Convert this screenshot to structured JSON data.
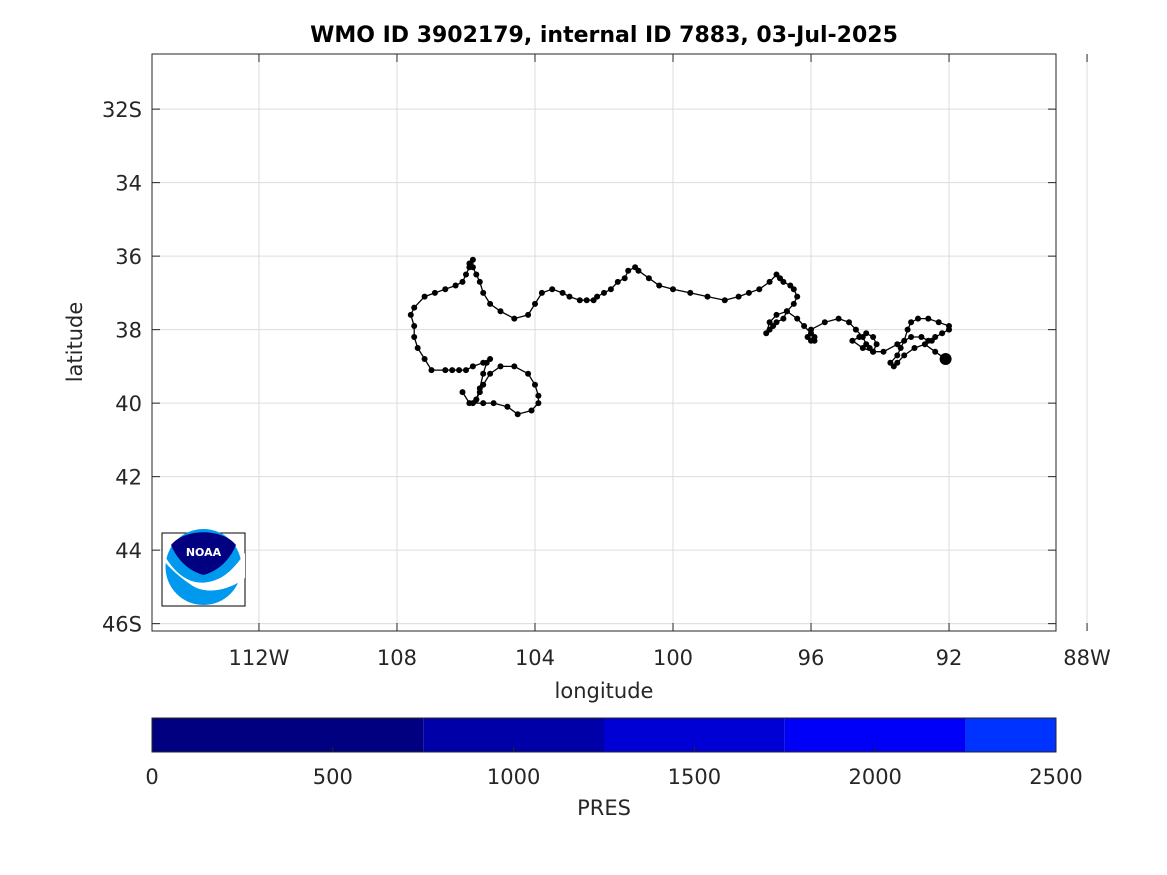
{
  "chart_data": {
    "type": "scatter",
    "title": "WMO ID 3902179, internal ID 7883, 03-Jul-2025",
    "xlabel": "longitude",
    "ylabel": "latitude",
    "xlim": [
      -115.1,
      -88.9
    ],
    "ylim": [
      -46.2,
      -30.5
    ],
    "x_ticks": [
      {
        "value": -112,
        "label": "112W"
      },
      {
        "value": -108,
        "label": "108"
      },
      {
        "value": -104,
        "label": "104"
      },
      {
        "value": -100,
        "label": "100"
      },
      {
        "value": -96,
        "label": "96"
      },
      {
        "value": -92,
        "label": "92"
      },
      {
        "value": -88,
        "label": "88W"
      }
    ],
    "y_ticks": [
      {
        "value": -32,
        "label": "32S"
      },
      {
        "value": -34,
        "label": "34"
      },
      {
        "value": -36,
        "label": "36"
      },
      {
        "value": -38,
        "label": "38"
      },
      {
        "value": -40,
        "label": "40"
      },
      {
        "value": -42,
        "label": "42"
      },
      {
        "value": -44,
        "label": "44"
      },
      {
        "value": -46,
        "label": "46S"
      }
    ],
    "grid": true,
    "series": [
      {
        "marker_color": "#000000",
        "line_color": "#000000",
        "last_point_highlighted": true,
        "lon": [
          -106.1,
          -105.9,
          -105.5,
          -105.2,
          -104.8,
          -104.5,
          -104.1,
          -103.9,
          -103.9,
          -104.0,
          -104.2,
          -104.6,
          -105.0,
          -105.3,
          -105.5,
          -105.6,
          -105.7,
          -105.8,
          -105.7,
          -105.6,
          -105.5,
          -105.4,
          -105.3,
          -105.5,
          -105.8,
          -106.0,
          -106.2,
          -106.4,
          -106.6,
          -107.0,
          -107.2,
          -107.4,
          -107.5,
          -107.5,
          -107.6,
          -107.5,
          -107.2,
          -106.9,
          -106.6,
          -106.3,
          -106.1,
          -106.0,
          -105.9,
          -105.9,
          -105.8,
          -105.8,
          -105.7,
          -105.6,
          -105.5,
          -105.3,
          -105.0,
          -104.6,
          -104.2,
          -104.0,
          -103.8,
          -103.5,
          -103.2,
          -103.0,
          -102.7,
          -102.5,
          -102.3,
          -102.2,
          -102.0,
          -101.8,
          -101.6,
          -101.4,
          -101.3,
          -101.1,
          -101.0,
          -100.7,
          -100.4,
          -100.0,
          -99.5,
          -99.0,
          -98.5,
          -98.1,
          -97.8,
          -97.5,
          -97.2,
          -97.0,
          -96.9,
          -96.8,
          -96.6,
          -96.5,
          -96.4,
          -96.5,
          -96.7,
          -96.8,
          -97.0,
          -97.1,
          -97.2,
          -97.3,
          -97.2,
          -97.0,
          -96.7,
          -96.4,
          -96.2,
          -96.0,
          -95.9,
          -95.9,
          -96.0,
          -96.1,
          -96.0,
          -95.6,
          -95.2,
          -94.9,
          -94.7,
          -94.5,
          -94.4,
          -94.3,
          -94.2,
          -94.1,
          -94.2,
          -94.4,
          -94.6,
          -94.8,
          -94.5,
          -94.2,
          -93.9,
          -93.5,
          -93.1,
          -92.8,
          -92.6,
          -92.5,
          -92.4,
          -92.2,
          -92.0,
          -92.0,
          -92.3,
          -92.6,
          -92.9,
          -93.1,
          -93.2,
          -93.3,
          -93.4,
          -93.5,
          -93.7,
          -93.6,
          -93.5,
          -93.3,
          -93.0,
          -92.7,
          -92.4,
          -92.1
        ],
        "lat": [
          -39.7,
          -40.0,
          -40.0,
          -40.0,
          -40.1,
          -40.3,
          -40.2,
          -40.0,
          -39.8,
          -39.5,
          -39.2,
          -39.0,
          -39.0,
          -39.2,
          -39.5,
          -39.7,
          -39.9,
          -40.0,
          -39.9,
          -39.6,
          -39.2,
          -38.9,
          -38.8,
          -38.9,
          -39.0,
          -39.1,
          -39.1,
          -39.1,
          -39.1,
          -39.1,
          -38.8,
          -38.5,
          -38.2,
          -37.9,
          -37.6,
          -37.4,
          -37.1,
          -37.0,
          -36.9,
          -36.8,
          -36.7,
          -36.5,
          -36.3,
          -36.2,
          -36.1,
          -36.3,
          -36.5,
          -36.7,
          -37.0,
          -37.3,
          -37.5,
          -37.7,
          -37.6,
          -37.3,
          -37.0,
          -36.9,
          -37.0,
          -37.1,
          -37.2,
          -37.2,
          -37.2,
          -37.1,
          -37.0,
          -36.9,
          -36.7,
          -36.6,
          -36.4,
          -36.3,
          -36.4,
          -36.6,
          -36.8,
          -36.9,
          -37.0,
          -37.1,
          -37.2,
          -37.1,
          -37.0,
          -36.9,
          -36.7,
          -36.5,
          -36.6,
          -36.7,
          -36.8,
          -36.9,
          -37.1,
          -37.3,
          -37.5,
          -37.7,
          -37.8,
          -37.9,
          -38.0,
          -38.1,
          -37.8,
          -37.6,
          -37.5,
          -37.7,
          -37.9,
          -38.1,
          -38.2,
          -38.3,
          -38.3,
          -38.2,
          -38.0,
          -37.8,
          -37.7,
          -37.8,
          -38.0,
          -38.2,
          -38.4,
          -38.5,
          -38.6,
          -38.4,
          -38.2,
          -38.1,
          -38.2,
          -38.3,
          -38.5,
          -38.6,
          -38.6,
          -38.4,
          -38.2,
          -38.2,
          -38.3,
          -38.3,
          -38.2,
          -38.1,
          -38.0,
          -37.9,
          -37.8,
          -37.7,
          -37.7,
          -37.8,
          -38.0,
          -38.3,
          -38.5,
          -38.7,
          -38.9,
          -39.0,
          -38.9,
          -38.7,
          -38.5,
          -38.4,
          -38.6,
          -38.8,
          -38.9,
          -39.0
        ]
      }
    ]
  },
  "colorbar": {
    "label": "PRES",
    "range": [
      0,
      2500
    ],
    "ticks": [
      0,
      500,
      1000,
      1500,
      2000,
      2500
    ],
    "segments": [
      {
        "from": 0,
        "to": 750,
        "color": "#000080"
      },
      {
        "from": 750,
        "to": 1250,
        "color": "#0000a8"
      },
      {
        "from": 1250,
        "to": 1750,
        "color": "#0000d4"
      },
      {
        "from": 1750,
        "to": 2250,
        "color": "#0000f8"
      },
      {
        "from": 2250,
        "to": 2500,
        "color": "#0033ff"
      }
    ]
  },
  "logo": {
    "text": "NOAA",
    "dark_color": "#000080",
    "light_color": "#0099ee"
  }
}
